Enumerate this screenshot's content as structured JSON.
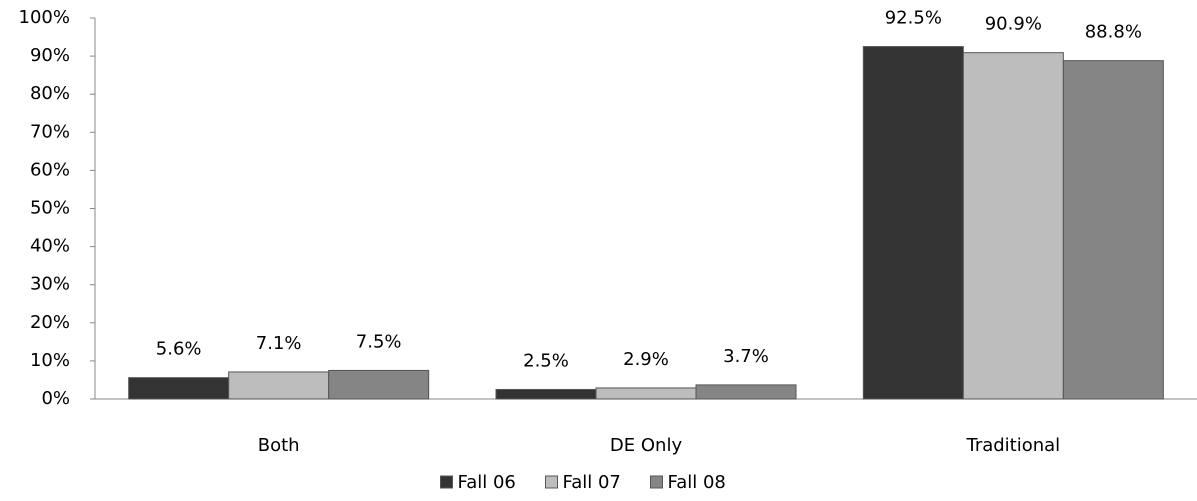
{
  "chart_data": {
    "type": "bar",
    "categories": [
      "Both",
      "DE Only",
      "Traditional"
    ],
    "series": [
      {
        "name": "Fall 06",
        "color": "#333333",
        "values": [
          5.6,
          2.5,
          92.5
        ],
        "value_labels": [
          "5.6%",
          "2.5%",
          "92.5%"
        ]
      },
      {
        "name": "Fall 07",
        "color": "#bdbdbd",
        "values": [
          7.1,
          2.9,
          90.9
        ],
        "value_labels": [
          "7.1%",
          "2.9%",
          "90.9%"
        ]
      },
      {
        "name": "Fall 08",
        "color": "#858585",
        "values": [
          7.5,
          3.7,
          88.8
        ],
        "value_labels": [
          "7.5%",
          "3.7%",
          "88.8%"
        ]
      }
    ],
    "ylim": [
      0,
      100
    ],
    "yticks": [
      {
        "value": 0,
        "label": "0%"
      },
      {
        "value": 10,
        "label": "10%"
      },
      {
        "value": 20,
        "label": "20%"
      },
      {
        "value": 30,
        "label": "30%"
      },
      {
        "value": 40,
        "label": "40%"
      },
      {
        "value": 50,
        "label": "50%"
      },
      {
        "value": 60,
        "label": "60%"
      },
      {
        "value": 70,
        "label": "70%"
      },
      {
        "value": 80,
        "label": "80%"
      },
      {
        "value": 90,
        "label": "90%"
      },
      {
        "value": 100,
        "label": "100%"
      }
    ],
    "legend": "bottom"
  }
}
